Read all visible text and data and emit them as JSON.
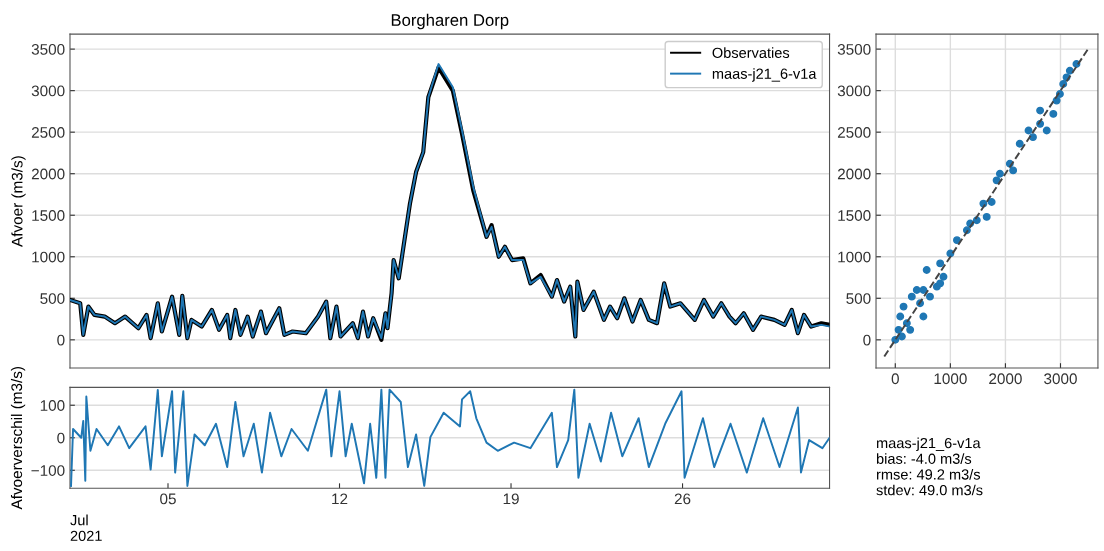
{
  "chart_data": [
    {
      "type": "line",
      "title": "Borgharen Dorp",
      "ylabel": "Afvoer (m3/s)",
      "x": [
        "2021-07-01T00:00",
        "2021-07-01T10:00",
        "2021-07-01T13:00",
        "2021-07-01T18:00",
        "2021-07-02T00:00",
        "2021-07-02T10:00",
        "2021-07-02T20:00",
        "2021-07-03T06:00",
        "2021-07-03T19:00",
        "2021-07-04T03:00",
        "2021-07-04T07:00",
        "2021-07-04T14:00",
        "2021-07-04T18:00",
        "2021-07-05T04:00",
        "2021-07-05T11:00",
        "2021-07-05T14:00",
        "2021-07-05T19:00",
        "2021-07-05T23:00",
        "2021-07-06T09:00",
        "2021-07-06T19:00",
        "2021-07-07T02:00",
        "2021-07-07T10:00",
        "2021-07-07T13:00",
        "2021-07-07T18:00",
        "2021-07-07T23:00",
        "2021-07-08T06:00",
        "2021-07-08T11:00",
        "2021-07-08T19:00",
        "2021-07-09T00:00",
        "2021-07-09T13:00",
        "2021-07-09T18:00",
        "2021-07-10T02:00",
        "2021-07-10T15:00",
        "2021-07-11T03:00",
        "2021-07-11T11:00",
        "2021-07-11T15:00",
        "2021-07-11T21:00",
        "2021-07-12T01:00",
        "2021-07-12T13:00",
        "2021-07-12T18:00",
        "2021-07-12T23:00",
        "2021-07-13T04:00",
        "2021-07-13T09:00",
        "2021-07-13T17:00",
        "2021-07-13T21:00",
        "2021-07-13T23:00",
        "2021-07-14T03:00",
        "2021-07-14T05:00",
        "2021-07-14T10:00",
        "2021-07-14T21:00",
        "2021-07-15T03:00",
        "2021-07-15T10:00",
        "2021-07-15T15:00",
        "2021-07-16T01:00",
        "2021-07-16T15:00",
        "2021-07-17T00:00",
        "2021-07-17T11:00",
        "2021-07-18T00:00",
        "2021-07-18T05:00",
        "2021-07-18T12:00",
        "2021-07-18T18:00",
        "2021-07-19T01:00",
        "2021-07-19T12:00",
        "2021-07-19T19:00",
        "2021-07-20T05:00",
        "2021-07-20T16:00",
        "2021-07-20T21:00",
        "2021-07-21T04:00",
        "2021-07-21T10:00",
        "2021-07-21T15:00",
        "2021-07-21T17:00",
        "2021-07-21T23:00",
        "2021-07-22T09:00",
        "2021-07-22T19:00",
        "2021-07-23T01:00",
        "2021-07-23T08:00",
        "2021-07-23T15:00",
        "2021-07-23T23:00",
        "2021-07-24T07:00",
        "2021-07-24T15:00",
        "2021-07-24T23:00",
        "2021-07-25T06:00",
        "2021-07-25T12:00",
        "2021-07-25T22:00",
        "2021-07-26T12:00",
        "2021-07-26T21:00",
        "2021-07-27T06:00",
        "2021-07-27T14:00",
        "2021-07-27T22:00",
        "2021-07-28T04:00",
        "2021-07-28T12:00",
        "2021-07-28T21:00",
        "2021-07-29T05:00",
        "2021-07-29T18:00",
        "2021-07-30T04:00",
        "2021-07-30T11:00",
        "2021-07-30T17:00",
        "2021-07-30T23:00",
        "2021-07-31T06:00",
        "2021-07-31T16:00",
        "2021-08-01T00:00"
      ],
      "series": [
        {
          "name": "Observaties",
          "color": "#000000",
          "values": [
            480,
            440,
            60,
            400,
            300,
            280,
            200,
            280,
            140,
            300,
            20,
            440,
            100,
            520,
            60,
            530,
            20,
            240,
            160,
            360,
            120,
            300,
            20,
            360,
            60,
            280,
            40,
            340,
            80,
            380,
            60,
            100,
            80,
            280,
            460,
            20,
            400,
            40,
            200,
            20,
            340,
            40,
            260,
            0,
            320,
            140,
            560,
            960,
            740,
            1640,
            2020,
            2260,
            2920,
            3280,
            3000,
            2480,
            1800,
            1240,
            1380,
            1000,
            1120,
            960,
            980,
            680,
            780,
            520,
            720,
            460,
            640,
            40,
            700,
            360,
            580,
            240,
            400,
            260,
            500,
            220,
            480,
            240,
            200,
            680,
            400,
            440,
            240,
            480,
            280,
            440,
            280,
            200,
            320,
            120,
            280,
            240,
            180,
            360,
            80,
            300,
            160,
            200,
            180
          ]
        },
        {
          "name": "maas-j21_6-v1a",
          "color": "#1f77b4",
          "values": [
            480,
            440,
            60,
            400,
            300,
            280,
            200,
            280,
            140,
            300,
            20,
            440,
            100,
            520,
            60,
            530,
            20,
            240,
            160,
            360,
            120,
            300,
            20,
            360,
            60,
            280,
            40,
            340,
            80,
            380,
            60,
            100,
            80,
            280,
            460,
            20,
            400,
            40,
            200,
            20,
            340,
            40,
            260,
            20,
            320,
            140,
            560,
            960,
            740,
            1640,
            2020,
            2260,
            2920,
            3320,
            3040,
            2520,
            1840,
            1240,
            1360,
            1000,
            1120,
            960,
            960,
            680,
            760,
            520,
            720,
            460,
            640,
            40,
            700,
            360,
            580,
            240,
            400,
            260,
            500,
            220,
            480,
            240,
            200,
            680,
            400,
            440,
            240,
            480,
            280,
            440,
            280,
            200,
            320,
            120,
            280,
            240,
            180,
            360,
            80,
            300,
            160,
            180,
            160
          ]
        }
      ],
      "xlim": [
        "2021-07-01T00:00",
        "2021-08-01T00:00"
      ],
      "ylim": [
        -340,
        3680
      ],
      "yticks": [
        0,
        500,
        1000,
        1500,
        2000,
        2500,
        3000,
        3500
      ],
      "grid": "y",
      "legend": "top right",
      "tick_labels": "y"
    },
    {
      "type": "line",
      "ylabel": "Afvoerverschil (m3/s)",
      "x": [
        "2021-07-01T01:00",
        "2021-07-01T03:00",
        "2021-07-01T11:00",
        "2021-07-01T13:00",
        "2021-07-01T15:00",
        "2021-07-01T16:00",
        "2021-07-01T20:00",
        "2021-07-02T02:00",
        "2021-07-02T13:00",
        "2021-07-03T00:00",
        "2021-07-03T10:00",
        "2021-07-04T02:00",
        "2021-07-04T07:00",
        "2021-07-04T14:00",
        "2021-07-04T18:00",
        "2021-07-05T04:00",
        "2021-07-05T07:00",
        "2021-07-05T15:00",
        "2021-07-05T19:00",
        "2021-07-06T02:00",
        "2021-07-06T12:00",
        "2021-07-06T23:00",
        "2021-07-07T10:00",
        "2021-07-07T18:00",
        "2021-07-08T02:00",
        "2021-07-08T12:00",
        "2021-07-08T20:00",
        "2021-07-09T04:00",
        "2021-07-09T15:00",
        "2021-07-10T01:00",
        "2021-07-10T17:00",
        "2021-07-11T11:00",
        "2021-07-11T16:00",
        "2021-07-12T00:00",
        "2021-07-12T06:00",
        "2021-07-12T12:00",
        "2021-07-13T00:00",
        "2021-07-13T06:00",
        "2021-07-13T12:00",
        "2021-07-13T17:00",
        "2021-07-13T21:00",
        "2021-07-14T01:00",
        "2021-07-14T12:00",
        "2021-07-14T19:00",
        "2021-07-15T03:00",
        "2021-07-15T11:00",
        "2021-07-15T17:00",
        "2021-07-16T06:00",
        "2021-07-16T22:00",
        "2021-07-17T00:00",
        "2021-07-17T08:00",
        "2021-07-17T14:00",
        "2021-07-18T00:00",
        "2021-07-18T11:00",
        "2021-07-19T03:00",
        "2021-07-19T19:00",
        "2021-07-20T16:00",
        "2021-07-20T21:00",
        "2021-07-21T08:00",
        "2021-07-21T14:00",
        "2021-07-21T18:00",
        "2021-07-22T05:00",
        "2021-07-22T16:00",
        "2021-07-23T02:00",
        "2021-07-23T13:00",
        "2021-07-24T05:00",
        "2021-07-24T15:00",
        "2021-07-25T07:00",
        "2021-07-25T23:00",
        "2021-07-26T02:00",
        "2021-07-26T20:00",
        "2021-07-27T07:00",
        "2021-07-27T23:00",
        "2021-07-28T15:00",
        "2021-07-29T07:00",
        "2021-07-29T23:00",
        "2021-07-30T17:00",
        "2021-07-30T20:00",
        "2021-07-31T04:00",
        "2021-07-31T17:00",
        "2021-08-01T00:00"
      ],
      "series": [
        {
          "color": "#1f77b4",
          "values": [
            -148,
            27,
            0,
            52,
            -132,
            127,
            -40,
            27,
            -23,
            35,
            -32,
            35,
            -98,
            147,
            -57,
            143,
            -107,
            143,
            -148,
            10,
            -23,
            43,
            -90,
            110,
            -57,
            43,
            -107,
            77,
            -57,
            27,
            -40,
            148,
            -57,
            143,
            -57,
            43,
            -140,
            43,
            -123,
            148,
            -123,
            148,
            110,
            -90,
            10,
            -148,
            2,
            77,
            35,
            118,
            143,
            60,
            -15,
            -40,
            -15,
            -32,
            77,
            -90,
            -7,
            148,
            -123,
            43,
            -73,
            77,
            -57,
            60,
            -90,
            43,
            143,
            -123,
            60,
            -90,
            43,
            -107,
            60,
            -90,
            93,
            -107,
            -7,
            -32,
            0
          ]
        }
      ],
      "xlim": [
        "2021-07-01T00:00",
        "2021-08-01T00:00"
      ],
      "ylim": [
        -155,
        155
      ],
      "yticks": [
        {
          "value": -100,
          "label": "−100"
        },
        0,
        100
      ],
      "xticks": [
        {
          "value": "2021-07-05",
          "label": "05"
        },
        {
          "value": "2021-07-12",
          "label": "12"
        },
        {
          "value": "2021-07-19",
          "label": "19"
        },
        {
          "value": "2021-07-26",
          "label": "26"
        }
      ],
      "grid": "y",
      "annotations": [
        "Jul\n2021"
      ]
    },
    {
      "type": "scatter",
      "series": [
        {
          "color": "#1f77b4",
          "marker": "circle",
          "x": [
            0,
            60,
            90,
            150,
            210,
            270,
            300,
            450,
            510,
            570,
            630,
            755,
            815,
            875,
            1000,
            1120,
            1300,
            1480,
            1600,
            1750,
            1840,
            1900,
            2080,
            2140,
            2260,
            2420,
            2500,
            2630,
            2750,
            2870,
            2930,
            3050,
            3170,
            3290,
            3110,
            2630,
            2990,
            1660,
            1360,
            815,
            390,
            120,
            510
          ],
          "values": [
            0,
            120,
            280,
            400,
            200,
            120,
            520,
            440,
            600,
            840,
            520,
            640,
            920,
            760,
            1040,
            1200,
            1320,
            1440,
            1640,
            1660,
            1920,
            2000,
            2120,
            2040,
            2360,
            2520,
            2440,
            2600,
            2520,
            2720,
            2880,
            3080,
            3240,
            3320,
            3160,
            2760,
            2960,
            1480,
            1400,
            680,
            600,
            40,
            280
          ]
        },
        {
          "type": "line",
          "line_style": "dashed",
          "color": "#444444",
          "x": [
            -200,
            3500
          ],
          "values": [
            -200,
            3500
          ]
        }
      ],
      "xlim": [
        -350,
        3680
      ],
      "ylim": [
        -340,
        3680
      ],
      "xticks": [
        0,
        1000,
        2000,
        3000
      ],
      "yticks": [
        0,
        500,
        1000,
        1500,
        2000,
        2500,
        3000,
        3500
      ],
      "grid": true,
      "annotations": [
        "maas-j21_6-v1a\nbias: -4.0 m3/s\nrmse: 49.2 m3/s\nstdev: 49.0 m3/s"
      ]
    }
  ]
}
